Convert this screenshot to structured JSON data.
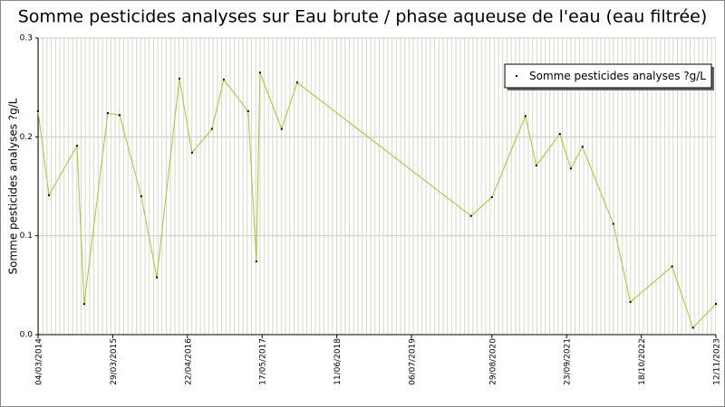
{
  "chart_data": {
    "type": "line",
    "title": "Somme pesticides analyses sur Eau brute / phase aqueuse de l'eau (eau filtrée)",
    "y_label": "Somme pesticides analyses ?g/L",
    "x": [
      "2014-03-04",
      "2014-04-30",
      "2014-09-23",
      "2014-10-31",
      "2015-03-03",
      "2015-05-04",
      "2015-08-25",
      "2015-11-14",
      "2016-03-11",
      "2016-05-16",
      "2016-08-28",
      "2016-10-29",
      "2017-03-05",
      "2017-04-17",
      "2017-05-06",
      "2017-08-27",
      "2017-11-16",
      "2020-05-12",
      "2020-08-29",
      "2021-02-20",
      "2021-04-18",
      "2021-08-19",
      "2021-10-15",
      "2021-12-15",
      "2022-05-25",
      "2022-08-22",
      "2023-03-28",
      "2023-07-15",
      "2023-11-12"
    ],
    "series": [
      {
        "name": "Somme pesticides analyses ?g/L",
        "color": "#99cc33",
        "values": [
          0.226,
          0.141,
          0.191,
          0.031,
          0.224,
          0.222,
          0.14,
          0.058,
          0.259,
          0.184,
          0.208,
          0.258,
          0.226,
          0.074,
          0.265,
          0.208,
          0.255,
          0.12,
          0.139,
          0.221,
          0.171,
          0.203,
          0.168,
          0.19,
          0.112,
          0.033,
          0.069,
          0.007,
          0.031
        ]
      }
    ],
    "xlim": [
      "2014-03-04",
      "2023-11-12"
    ],
    "xticks": [
      {
        "value": "2014-03-04",
        "label": "04/03/2014"
      },
      {
        "value": "2015-03-29",
        "label": "29/03/2015"
      },
      {
        "value": "2016-04-22",
        "label": "22/04/2016"
      },
      {
        "value": "2017-05-17",
        "label": "17/05/2017"
      },
      {
        "value": "2018-06-11",
        "label": "11/06/2018"
      },
      {
        "value": "2019-07-06",
        "label": "06/07/2019"
      },
      {
        "value": "2020-08-29",
        "label": "29/08/2020"
      },
      {
        "value": "2021-09-23",
        "label": "23/09/2021"
      },
      {
        "value": "2022-10-18",
        "label": "18/10/2022"
      },
      {
        "value": "2023-11-12",
        "label": "12/11/2023"
      }
    ],
    "ylim": [
      0,
      0.3
    ],
    "yticks": [
      {
        "value": 0,
        "label": "0.0"
      },
      0.1,
      0.2,
      0.3
    ],
    "grid": true,
    "legend": "upper right"
  }
}
